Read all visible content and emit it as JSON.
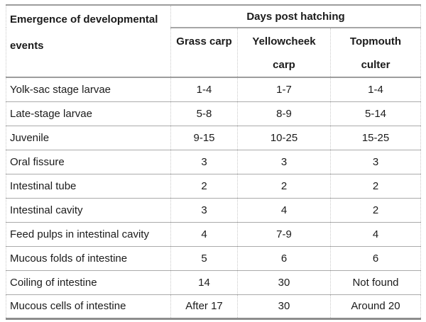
{
  "chart_data": {
    "type": "table",
    "corner_header": "Emergence of developmental events",
    "group_header": "Days post hatching",
    "column_headers": [
      "Grass carp",
      "Yellowcheek carp",
      "Topmouth culter"
    ],
    "rows": [
      {
        "label": "Yolk-sac stage larvae",
        "values": [
          "1-4",
          "1-7",
          "1-4"
        ]
      },
      {
        "label": "Late-stage larvae",
        "values": [
          "5-8",
          "8-9",
          "5-14"
        ]
      },
      {
        "label": "Juvenile",
        "values": [
          "9-15",
          "10-25",
          "15-25"
        ]
      },
      {
        "label": "Oral fissure",
        "values": [
          "3",
          "3",
          "3"
        ]
      },
      {
        "label": "Intestinal tube",
        "values": [
          "2",
          "2",
          "2"
        ]
      },
      {
        "label": "Intestinal cavity",
        "values": [
          "3",
          "4",
          "2"
        ]
      },
      {
        "label": "Feed pulps in intestinal cavity",
        "values": [
          "4",
          "7-9",
          "4"
        ]
      },
      {
        "label": "Mucous folds of intestine",
        "values": [
          "5",
          "6",
          "6"
        ]
      },
      {
        "label": "Coiling of intestine",
        "values": [
          "14",
          "30",
          "Not found"
        ]
      },
      {
        "label": "Mucous cells of intestine",
        "values": [
          "After 17",
          "30",
          "Around 20"
        ]
      }
    ]
  },
  "display": {
    "corner_lines": [
      "Emergence of developmental",
      "events"
    ],
    "col_lines": [
      [
        "Grass carp"
      ],
      [
        "Yellowcheek",
        "carp"
      ],
      [
        "Topmouth",
        "culter"
      ]
    ]
  },
  "colors": {
    "text": "#1b1b1b",
    "border_solid": "#a6a6a6",
    "border_outer": "#8d8d8d",
    "border_dotted": "#c9c9c9",
    "background": "#ffffff"
  }
}
